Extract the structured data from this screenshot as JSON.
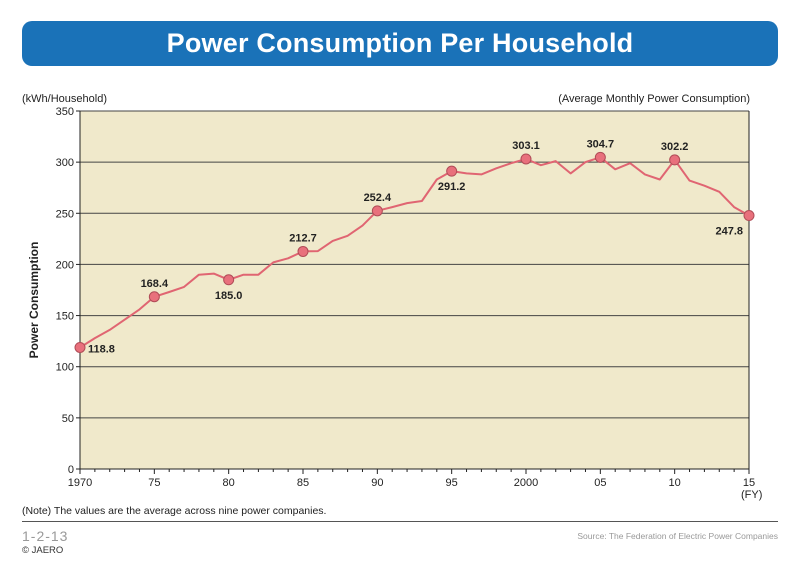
{
  "header": {
    "title": "Power Consumption Per Household"
  },
  "labels": {
    "unit": "(kWh/Household)",
    "subtitle": "(Average Monthly Power Consumption)",
    "fy": "(FY)",
    "note": "(Note) The values are the average across nine power companies.",
    "figure_number": "1-2-13",
    "source": "Source: The Federation of Electric Power Companies",
    "copyright": "© JAERO"
  },
  "colors": {
    "title_bar": "#1a72b8",
    "plot_bg": "#f0e9cb",
    "line": "#e06572",
    "marker": "#e8707c"
  },
  "chart_data": {
    "type": "line",
    "title": "Power Consumption Per Household",
    "ylabel": "Power Consumption",
    "xlim": [
      1970,
      2015
    ],
    "ylim": [
      0,
      350
    ],
    "grid": true,
    "x_ticks": [
      1970,
      1975,
      1980,
      1985,
      1990,
      1995,
      2000,
      2005,
      2010,
      2015
    ],
    "x_tick_labels": [
      "1970",
      "75",
      "80",
      "85",
      "90",
      "95",
      "2000",
      "05",
      "10",
      "15"
    ],
    "y_ticks": [
      0,
      50,
      100,
      150,
      200,
      250,
      300,
      350
    ],
    "y_tick_labels": [
      "0",
      "50",
      "100",
      "150",
      "200",
      "250",
      "300",
      "350"
    ],
    "series": [
      {
        "x": [
          1970,
          1971,
          1972,
          1973,
          1974,
          1975,
          1976,
          1977,
          1978,
          1979,
          1980,
          1981,
          1982,
          1983,
          1984,
          1985,
          1986,
          1987,
          1988,
          1989,
          1990,
          1991,
          1992,
          1993,
          1994,
          1995,
          1996,
          1997,
          1998,
          1999,
          2000,
          2001,
          2002,
          2003,
          2004,
          2005,
          2006,
          2007,
          2008,
          2009,
          2010,
          2011,
          2012,
          2013,
          2014,
          2015
        ],
        "values": [
          118.8,
          128,
          136,
          146,
          156,
          168.4,
          173,
          178,
          190,
          191,
          185.0,
          190,
          190,
          202,
          206,
          212.7,
          213,
          223,
          228,
          238,
          252.4,
          256,
          260,
          262,
          283,
          291.2,
          289,
          288,
          294,
          299,
          303.1,
          297,
          301,
          289,
          300,
          304.7,
          293,
          299,
          288,
          283,
          302.2,
          282,
          277,
          271,
          256,
          247.8
        ]
      }
    ],
    "markers": [
      {
        "x": 1970,
        "y": 118.8,
        "label": "118.8",
        "pos": "right"
      },
      {
        "x": 1975,
        "y": 168.4,
        "label": "168.4",
        "pos": "above"
      },
      {
        "x": 1980,
        "y": 185.0,
        "label": "185.0",
        "pos": "below"
      },
      {
        "x": 1985,
        "y": 212.7,
        "label": "212.7",
        "pos": "above"
      },
      {
        "x": 1990,
        "y": 252.4,
        "label": "252.4",
        "pos": "above"
      },
      {
        "x": 1995,
        "y": 291.2,
        "label": "291.2",
        "pos": "below"
      },
      {
        "x": 2000,
        "y": 303.1,
        "label": "303.1",
        "pos": "above"
      },
      {
        "x": 2005,
        "y": 304.7,
        "label": "304.7",
        "pos": "above"
      },
      {
        "x": 2010,
        "y": 302.2,
        "label": "302.2",
        "pos": "above"
      },
      {
        "x": 2015,
        "y": 247.8,
        "label": "247.8",
        "pos": "below-left"
      }
    ]
  }
}
